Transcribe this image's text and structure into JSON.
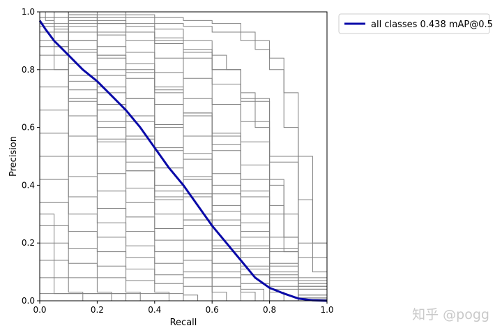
{
  "watermark": "知乎 @pogg",
  "chart_data": {
    "type": "line",
    "xlabel": "Recall",
    "ylabel": "Precision",
    "xlim": [
      0,
      1
    ],
    "ylim": [
      0,
      1
    ],
    "xticks": [
      "0.0",
      "0.2",
      "0.4",
      "0.6",
      "0.8",
      "1.0"
    ],
    "yticks": [
      "0.0",
      "0.2",
      "0.4",
      "0.6",
      "0.8",
      "1.0"
    ],
    "legend": {
      "placement": "outside-top-right",
      "entries": [
        "all classes 0.438 mAP@0.5"
      ]
    },
    "grid": false,
    "colors": {
      "mean": "#0a0aa8",
      "classes": "#808080"
    },
    "series": [
      {
        "name": "all classes 0.438 mAP@0.5",
        "x": [
          0,
          0.02,
          0.05,
          0.08,
          0.1,
          0.15,
          0.2,
          0.25,
          0.3,
          0.35,
          0.4,
          0.45,
          0.5,
          0.55,
          0.6,
          0.65,
          0.7,
          0.75,
          0.8,
          0.85,
          0.9,
          0.95,
          1.0
        ],
        "y": [
          0.97,
          0.94,
          0.9,
          0.87,
          0.85,
          0.8,
          0.76,
          0.71,
          0.66,
          0.6,
          0.53,
          0.46,
          0.4,
          0.33,
          0.26,
          0.2,
          0.14,
          0.08,
          0.045,
          0.025,
          0.008,
          0.002,
          0
        ]
      }
    ],
    "class_curves": [
      {
        "x": [
          0,
          0.1,
          0.2,
          0.3,
          0.4,
          0.5,
          0.6,
          0.7,
          0.75,
          0.8,
          0.85,
          0.9,
          0.95,
          1.0
        ],
        "y": [
          1,
          1,
          1,
          0.99,
          0.98,
          0.97,
          0.96,
          0.93,
          0.9,
          0.84,
          0.72,
          0.5,
          0.2,
          0
        ]
      },
      {
        "x": [
          0,
          0.1,
          0.2,
          0.3,
          0.4,
          0.5,
          0.6,
          0.7,
          0.75,
          0.8,
          0.85,
          0.9,
          0.95,
          1.0
        ],
        "y": [
          1,
          1,
          0.99,
          0.98,
          0.96,
          0.95,
          0.93,
          0.9,
          0.87,
          0.8,
          0.6,
          0.35,
          0.1,
          0
        ]
      },
      {
        "x": [
          0,
          0.1,
          0.2,
          0.3,
          0.4,
          0.5,
          0.6,
          0.65,
          0.7,
          0.75,
          0.8,
          0.85,
          0.9,
          1.0
        ],
        "y": [
          1,
          0.99,
          0.98,
          0.96,
          0.94,
          0.9,
          0.85,
          0.8,
          0.72,
          0.6,
          0.42,
          0.22,
          0.06,
          0
        ]
      },
      {
        "x": [
          0,
          0.1,
          0.2,
          0.3,
          0.4,
          0.5,
          0.6,
          0.7,
          0.8,
          0.85,
          0.9,
          1.0
        ],
        "y": [
          1,
          0.98,
          0.96,
          0.93,
          0.89,
          0.84,
          0.75,
          0.62,
          0.4,
          0.22,
          0.07,
          0
        ]
      },
      {
        "x": [
          0,
          0.1,
          0.2,
          0.3,
          0.4,
          0.5,
          0.6,
          0.7,
          0.8,
          0.85,
          0.9,
          1.0
        ],
        "y": [
          1,
          0.97,
          0.93,
          0.9,
          0.84,
          0.77,
          0.68,
          0.55,
          0.33,
          0.17,
          0.05,
          0
        ]
      },
      {
        "x": [
          0,
          0.1,
          0.2,
          0.3,
          0.4,
          0.5,
          0.6,
          0.7,
          0.8,
          0.9,
          1.0
        ],
        "y": [
          1,
          0.96,
          0.92,
          0.86,
          0.79,
          0.7,
          0.58,
          0.42,
          0.22,
          0.05,
          0
        ]
      },
      {
        "x": [
          0,
          0.1,
          0.2,
          0.3,
          0.4,
          0.5,
          0.6,
          0.7,
          0.8,
          0.9,
          1.0
        ],
        "y": [
          1,
          0.95,
          0.88,
          0.82,
          0.74,
          0.64,
          0.52,
          0.36,
          0.17,
          0.04,
          0
        ]
      },
      {
        "x": [
          0,
          0.1,
          0.2,
          0.3,
          0.4,
          0.5,
          0.6,
          0.7,
          0.8,
          0.9,
          1.0
        ],
        "y": [
          0.98,
          0.93,
          0.85,
          0.77,
          0.68,
          0.57,
          0.44,
          0.3,
          0.13,
          0.02,
          0
        ]
      },
      {
        "x": [
          0,
          0.1,
          0.2,
          0.3,
          0.4,
          0.5,
          0.6,
          0.7,
          0.8,
          0.9,
          1.0
        ],
        "y": [
          1,
          0.9,
          0.8,
          0.7,
          0.6,
          0.49,
          0.37,
          0.24,
          0.1,
          0.01,
          0
        ]
      },
      {
        "x": [
          0,
          0.1,
          0.2,
          0.3,
          0.4,
          0.5,
          0.6,
          0.7,
          0.8,
          0.9,
          1.0
        ],
        "y": [
          0.96,
          0.86,
          0.74,
          0.64,
          0.53,
          0.42,
          0.31,
          0.19,
          0.07,
          0.01,
          0
        ]
      },
      {
        "x": [
          0,
          0.1,
          0.2,
          0.3,
          0.4,
          0.5,
          0.6,
          0.7,
          0.8,
          0.9,
          1.0
        ],
        "y": [
          1,
          0.82,
          0.68,
          0.57,
          0.46,
          0.36,
          0.26,
          0.15,
          0.05,
          0.005,
          0
        ]
      },
      {
        "x": [
          0,
          0.1,
          0.2,
          0.3,
          0.4,
          0.5,
          0.6,
          0.7,
          0.8,
          0.9
        ],
        "y": [
          0.9,
          0.76,
          0.62,
          0.5,
          0.4,
          0.3,
          0.21,
          0.12,
          0.04,
          0
        ]
      },
      {
        "x": [
          0,
          0.1,
          0.2,
          0.3,
          0.4,
          0.5,
          0.6,
          0.7,
          0.8,
          0.85
        ],
        "y": [
          0.85,
          0.7,
          0.56,
          0.45,
          0.35,
          0.26,
          0.17,
          0.09,
          0.03,
          0
        ]
      },
      {
        "x": [
          0,
          0.1,
          0.2,
          0.3,
          0.4,
          0.5,
          0.6,
          0.7,
          0.8
        ],
        "y": [
          0.8,
          0.64,
          0.5,
          0.39,
          0.3,
          0.21,
          0.13,
          0.06,
          0
        ]
      },
      {
        "x": [
          0,
          0.1,
          0.2,
          0.3,
          0.4,
          0.5,
          0.6,
          0.7,
          0.78
        ],
        "y": [
          0.74,
          0.57,
          0.44,
          0.34,
          0.25,
          0.17,
          0.1,
          0.04,
          0
        ]
      },
      {
        "x": [
          0,
          0.1,
          0.2,
          0.3,
          0.4,
          0.5,
          0.6,
          0.7,
          0.75
        ],
        "y": [
          0.66,
          0.5,
          0.38,
          0.29,
          0.21,
          0.14,
          0.08,
          0.03,
          0
        ]
      },
      {
        "x": [
          0,
          0.1,
          0.2,
          0.3,
          0.4,
          0.5,
          0.6,
          0.7
        ],
        "y": [
          0.58,
          0.43,
          0.32,
          0.24,
          0.17,
          0.1,
          0.05,
          0
        ]
      },
      {
        "x": [
          0,
          0.1,
          0.2,
          0.3,
          0.4,
          0.5,
          0.6,
          0.65
        ],
        "y": [
          0.5,
          0.36,
          0.27,
          0.19,
          0.13,
          0.08,
          0.03,
          0
        ]
      },
      {
        "x": [
          0,
          0.1,
          0.2,
          0.3,
          0.4,
          0.5,
          0.6
        ],
        "y": [
          0.42,
          0.3,
          0.22,
          0.15,
          0.09,
          0.05,
          0
        ]
      },
      {
        "x": [
          0,
          0.1,
          0.2,
          0.3,
          0.4,
          0.5,
          0.55
        ],
        "y": [
          0.34,
          0.24,
          0.17,
          0.11,
          0.06,
          0.02,
          0
        ]
      },
      {
        "x": [
          0,
          0.1,
          0.2,
          0.3,
          0.4,
          0.45
        ],
        "y": [
          0.26,
          0.18,
          0.12,
          0.07,
          0.03,
          0
        ]
      },
      {
        "x": [
          0,
          0.1,
          0.2,
          0.3,
          0.35
        ],
        "y": [
          0.2,
          0.13,
          0.08,
          0.03,
          0
        ]
      },
      {
        "x": [
          0,
          0.1,
          0.2,
          0.25
        ],
        "y": [
          0.14,
          0.08,
          0.03,
          0
        ]
      },
      {
        "x": [
          0,
          0.1,
          0.15
        ],
        "y": [
          0.08,
          0.03,
          0
        ]
      },
      {
        "x": [
          0,
          0.2,
          0.3
        ],
        "y": [
          0.025,
          0.025,
          0
        ]
      },
      {
        "x": [
          0,
          0.05,
          0.05,
          0.5,
          0.5
        ],
        "y": [
          0.3,
          0.3,
          0.025,
          0.025,
          0
        ]
      },
      {
        "x": [
          0,
          0.02,
          0.05,
          0.1,
          0.2,
          0.3,
          0.4,
          0.5,
          0.6,
          0.7,
          0.8,
          0.9,
          1.0
        ],
        "y": [
          1,
          0.97,
          0.94,
          0.9,
          0.85,
          0.8,
          0.73,
          0.65,
          0.54,
          0.38,
          0.18,
          0.04,
          0
        ]
      },
      {
        "x": [
          0,
          0.05,
          0.1,
          0.2,
          0.3,
          0.4,
          0.5,
          0.6,
          0.7,
          0.8,
          0.9,
          1.0
        ],
        "y": [
          1,
          0.93,
          0.87,
          0.78,
          0.7,
          0.61,
          0.51,
          0.4,
          0.27,
          0.12,
          0.02,
          0
        ]
      },
      {
        "x": [
          0,
          0.05,
          0.1,
          0.2,
          0.3,
          0.4,
          0.5,
          0.6,
          0.7,
          0.8,
          0.9
        ],
        "y": [
          1,
          0.88,
          0.78,
          0.66,
          0.56,
          0.46,
          0.37,
          0.28,
          0.18,
          0.08,
          0
        ]
      },
      {
        "x": [
          0,
          0.05,
          0.1,
          0.2,
          0.3,
          0.4,
          0.5,
          0.6,
          0.7,
          0.8
        ],
        "y": [
          1,
          0.8,
          0.69,
          0.55,
          0.45,
          0.36,
          0.28,
          0.19,
          0.11,
          0
        ]
      },
      {
        "x": [
          0,
          0.05,
          0.1,
          0.2,
          0.3,
          0.4,
          0.5,
          0.6,
          0.7,
          0.8,
          0.9,
          1.0
        ],
        "y": [
          1,
          1,
          0.98,
          0.96,
          0.93,
          0.9,
          0.86,
          0.8,
          0.7,
          0.5,
          0.2,
          0
        ]
      },
      {
        "x": [
          0,
          0.1,
          0.2,
          0.3,
          0.4,
          0.5,
          0.6,
          0.7,
          0.8,
          0.9,
          1.0
        ],
        "y": [
          1,
          0.99,
          0.97,
          0.95,
          0.91,
          0.87,
          0.8,
          0.69,
          0.48,
          0.15,
          0
        ]
      },
      {
        "x": [
          0,
          0.1,
          0.2,
          0.3,
          0.4,
          0.5,
          0.6,
          0.7,
          0.8,
          0.9,
          1.0
        ],
        "y": [
          0.95,
          0.9,
          0.84,
          0.79,
          0.72,
          0.65,
          0.57,
          0.47,
          0.3,
          0.08,
          0
        ]
      },
      {
        "x": [
          0,
          0.1,
          0.2,
          0.3,
          0.4,
          0.5,
          0.6,
          0.7,
          0.8,
          0.9
        ],
        "y": [
          0.93,
          0.82,
          0.72,
          0.62,
          0.52,
          0.43,
          0.33,
          0.22,
          0.09,
          0
        ]
      },
      {
        "x": [
          0,
          0.1,
          0.2,
          0.3,
          0.4,
          0.5,
          0.6,
          0.7,
          0.8
        ],
        "y": [
          0.88,
          0.73,
          0.6,
          0.48,
          0.38,
          0.28,
          0.18,
          0.09,
          0
        ]
      }
    ]
  }
}
